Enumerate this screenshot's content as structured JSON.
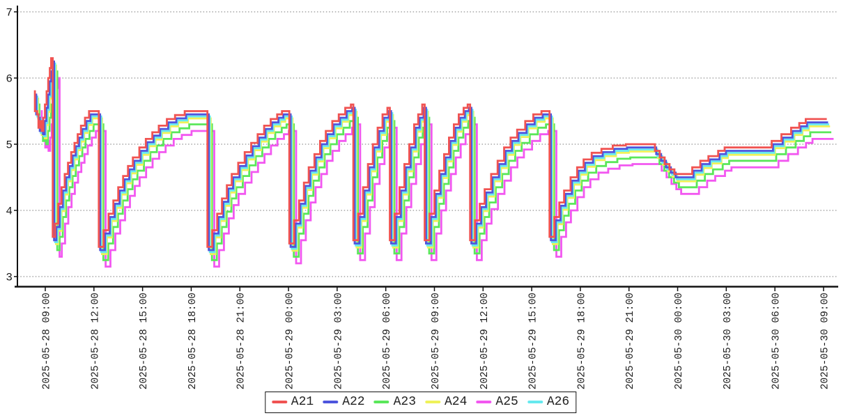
{
  "page": {
    "background_color": "#ffffff",
    "title": ""
  },
  "chart_data": {
    "type": "line",
    "interpolation": "step-after",
    "title": "",
    "xlabel": "",
    "ylabel": "",
    "grid": {
      "horizontal_dotted": true,
      "color": "#777777"
    },
    "legend_position": "bottom-center",
    "x_unit": "hours since 2025-05-28 00:00",
    "x_domain_hours": [
      7.75,
      57.75
    ],
    "y_domain": [
      2.85,
      7.05
    ],
    "y_ticks": [
      3,
      4,
      5,
      6,
      7
    ],
    "x_ticks": [
      {
        "hour": 9,
        "label": "2025-05-28 09:00"
      },
      {
        "hour": 12,
        "label": "2025-05-28 12:00"
      },
      {
        "hour": 15,
        "label": "2025-05-28 15:00"
      },
      {
        "hour": 18,
        "label": "2025-05-28 18:00"
      },
      {
        "hour": 21,
        "label": "2025-05-28 21:00"
      },
      {
        "hour": 24,
        "label": "2025-05-29 00:00"
      },
      {
        "hour": 27,
        "label": "2025-05-29 03:00"
      },
      {
        "hour": 30,
        "label": "2025-05-29 06:00"
      },
      {
        "hour": 33,
        "label": "2025-05-29 09:00"
      },
      {
        "hour": 36,
        "label": "2025-05-29 12:00"
      },
      {
        "hour": 39,
        "label": "2025-05-29 15:00"
      },
      {
        "hour": 42,
        "label": "2025-05-29 18:00"
      },
      {
        "hour": 45,
        "label": "2025-05-29 21:00"
      },
      {
        "hour": 48,
        "label": "2025-05-30 00:00"
      },
      {
        "hour": 51,
        "label": "2025-05-30 03:00"
      },
      {
        "hour": 54,
        "label": "2025-05-30 06:00"
      },
      {
        "hour": 57,
        "label": "2025-05-30 09:00"
      }
    ],
    "series": [
      {
        "name": "A21",
        "color": "#f05352",
        "dt_hours": 0.0,
        "dv": 0.0
      },
      {
        "name": "A22",
        "color": "#4d55dd",
        "dt_hours": 0.08,
        "dv": -0.05
      },
      {
        "name": "A23",
        "color": "#5ae75a",
        "dt_hours": 0.28,
        "dv": -0.2
      },
      {
        "name": "A24",
        "color": "#eff259",
        "dt_hours": 0.2,
        "dv": -0.11
      },
      {
        "name": "A25",
        "color": "#f257f0",
        "dt_hours": 0.42,
        "dv": -0.3
      },
      {
        "name": "A26",
        "color": "#66e9ef",
        "dt_hours": 0.15,
        "dv": -0.08
      }
    ],
    "draw_order": [
      4,
      2,
      3,
      5,
      1,
      0
    ],
    "note": "All six series follow the same sawtooth/step curve; each series is the base_points shifted right by dt_hours and down by dv.",
    "base_points": [
      [
        8.3,
        5.8
      ],
      [
        8.36,
        5.5
      ],
      [
        8.5,
        5.45
      ],
      [
        8.58,
        5.25
      ],
      [
        8.7,
        5.35
      ],
      [
        8.78,
        5.2
      ],
      [
        8.88,
        5.4
      ],
      [
        8.98,
        5.6
      ],
      [
        9.08,
        5.8
      ],
      [
        9.18,
        6.0
      ],
      [
        9.28,
        6.15
      ],
      [
        9.36,
        6.3
      ],
      [
        9.46,
        3.6
      ],
      [
        9.6,
        3.8
      ],
      [
        9.8,
        4.1
      ],
      [
        10.0,
        4.35
      ],
      [
        10.2,
        4.55
      ],
      [
        10.4,
        4.72
      ],
      [
        10.6,
        4.88
      ],
      [
        10.8,
        5.02
      ],
      [
        11.0,
        5.15
      ],
      [
        11.2,
        5.28
      ],
      [
        11.45,
        5.4
      ],
      [
        11.7,
        5.5
      ],
      [
        12.2,
        5.5
      ],
      [
        12.3,
        3.45
      ],
      [
        12.6,
        3.7
      ],
      [
        12.9,
        3.95
      ],
      [
        13.2,
        4.15
      ],
      [
        13.5,
        4.35
      ],
      [
        13.8,
        4.52
      ],
      [
        14.1,
        4.67
      ],
      [
        14.4,
        4.8
      ],
      [
        14.8,
        4.95
      ],
      [
        15.2,
        5.08
      ],
      [
        15.6,
        5.18
      ],
      [
        16.0,
        5.28
      ],
      [
        16.5,
        5.38
      ],
      [
        17.0,
        5.44
      ],
      [
        17.6,
        5.5
      ],
      [
        18.9,
        5.5
      ],
      [
        19.0,
        3.45
      ],
      [
        19.3,
        3.7
      ],
      [
        19.6,
        3.95
      ],
      [
        19.9,
        4.18
      ],
      [
        20.2,
        4.38
      ],
      [
        20.5,
        4.55
      ],
      [
        20.9,
        4.72
      ],
      [
        21.3,
        4.88
      ],
      [
        21.7,
        5.02
      ],
      [
        22.1,
        5.15
      ],
      [
        22.5,
        5.28
      ],
      [
        22.9,
        5.38
      ],
      [
        23.3,
        5.45
      ],
      [
        23.6,
        5.5
      ],
      [
        23.95,
        5.5
      ],
      [
        24.05,
        3.5
      ],
      [
        24.35,
        3.85
      ],
      [
        24.65,
        4.15
      ],
      [
        24.95,
        4.42
      ],
      [
        25.25,
        4.65
      ],
      [
        25.6,
        4.85
      ],
      [
        25.95,
        5.05
      ],
      [
        26.3,
        5.2
      ],
      [
        26.7,
        5.35
      ],
      [
        27.1,
        5.45
      ],
      [
        27.5,
        5.55
      ],
      [
        27.85,
        5.6
      ],
      [
        28.0,
        3.55
      ],
      [
        28.3,
        3.95
      ],
      [
        28.6,
        4.35
      ],
      [
        28.9,
        4.7
      ],
      [
        29.2,
        5.0
      ],
      [
        29.5,
        5.25
      ],
      [
        29.8,
        5.45
      ],
      [
        30.1,
        5.55
      ],
      [
        30.25,
        3.55
      ],
      [
        30.55,
        3.95
      ],
      [
        30.85,
        4.35
      ],
      [
        31.15,
        4.7
      ],
      [
        31.45,
        5.0
      ],
      [
        31.75,
        5.3
      ],
      [
        32.0,
        5.45
      ],
      [
        32.25,
        5.6
      ],
      [
        32.4,
        3.55
      ],
      [
        32.7,
        3.95
      ],
      [
        33.0,
        4.3
      ],
      [
        33.3,
        4.6
      ],
      [
        33.6,
        4.85
      ],
      [
        33.9,
        5.1
      ],
      [
        34.2,
        5.3
      ],
      [
        34.5,
        5.45
      ],
      [
        34.8,
        5.55
      ],
      [
        35.05,
        5.6
      ],
      [
        35.2,
        3.55
      ],
      [
        35.5,
        3.85
      ],
      [
        35.8,
        4.1
      ],
      [
        36.1,
        4.32
      ],
      [
        36.5,
        4.55
      ],
      [
        36.9,
        4.75
      ],
      [
        37.3,
        4.95
      ],
      [
        37.7,
        5.1
      ],
      [
        38.1,
        5.22
      ],
      [
        38.6,
        5.35
      ],
      [
        39.1,
        5.45
      ],
      [
        39.6,
        5.5
      ],
      [
        39.95,
        5.5
      ],
      [
        40.1,
        3.6
      ],
      [
        40.4,
        3.9
      ],
      [
        40.7,
        4.12
      ],
      [
        41.0,
        4.3
      ],
      [
        41.4,
        4.5
      ],
      [
        41.8,
        4.65
      ],
      [
        42.2,
        4.77
      ],
      [
        42.7,
        4.87
      ],
      [
        43.3,
        4.93
      ],
      [
        44.0,
        4.98
      ],
      [
        44.8,
        5.0
      ],
      [
        46.3,
        5.0
      ],
      [
        46.6,
        4.9
      ],
      [
        46.9,
        4.8
      ],
      [
        47.2,
        4.7
      ],
      [
        47.5,
        4.62
      ],
      [
        47.8,
        4.55
      ],
      [
        48.6,
        4.55
      ],
      [
        48.9,
        4.65
      ],
      [
        49.4,
        4.75
      ],
      [
        49.9,
        4.82
      ],
      [
        50.5,
        4.9
      ],
      [
        50.9,
        4.95
      ],
      [
        53.4,
        4.95
      ],
      [
        53.8,
        5.05
      ],
      [
        54.4,
        5.15
      ],
      [
        55.0,
        5.25
      ],
      [
        55.5,
        5.32
      ],
      [
        55.9,
        5.38
      ],
      [
        57.2,
        5.38
      ]
    ]
  }
}
